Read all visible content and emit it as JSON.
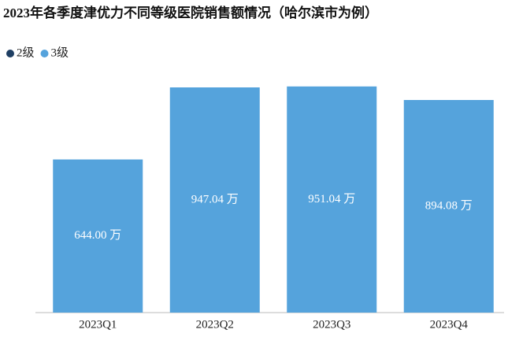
{
  "chart_data": {
    "type": "bar",
    "title": "2023年各季度津优力不同等级医院销售额情况（哈尔滨市为例）",
    "categories": [
      "2023Q1",
      "2023Q2",
      "2023Q3",
      "2023Q4"
    ],
    "series": [
      {
        "name": "2级",
        "color": "#1f3f63",
        "values": [
          null,
          null,
          null,
          null
        ]
      },
      {
        "name": "3级",
        "color": "#55a3dc",
        "values": [
          644.0,
          947.04,
          951.04,
          894.08
        ],
        "value_labels": [
          "644.00 万",
          "947.04 万",
          "951.04 万",
          "894.08 万"
        ]
      }
    ],
    "legend": "top-left"
  }
}
